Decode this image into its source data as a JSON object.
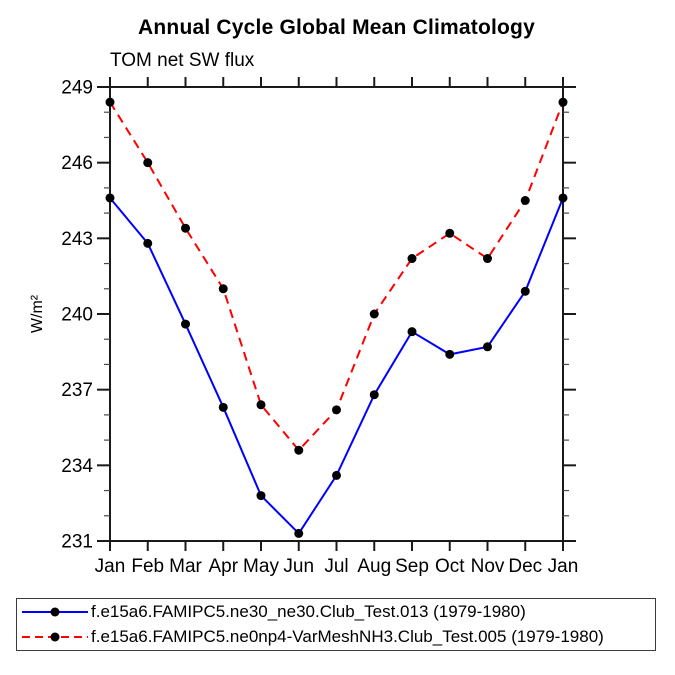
{
  "title": "Annual Cycle Global Mean Climatology",
  "subtitle": "TOM net SW flux",
  "chart_data": {
    "type": "line",
    "title": "Annual Cycle Global Mean Climatology",
    "subtitle": "TOM net SW flux",
    "ylabel": "W/m²",
    "x_categories": [
      "Jan",
      "Feb",
      "Mar",
      "Apr",
      "May",
      "Jun",
      "Jul",
      "Aug",
      "Sep",
      "Oct",
      "Nov",
      "Dec",
      "Jan"
    ],
    "ylim": [
      231,
      249
    ],
    "ytick_major_step": 3,
    "ytick_minor_step": 1,
    "ytick_labels": [
      "231",
      "234",
      "237",
      "240",
      "243",
      "246",
      "249"
    ],
    "grid": "off",
    "legend_position": "bottom-left-box",
    "axis_color": "#1a1a1a",
    "marker_color": "#000000",
    "series": [
      {
        "name": "f.e15a6.FAMIPC5.ne30_ne30.Club_Test.013 (1979-1980)",
        "color": "#0000ff",
        "style": "solid",
        "marker": "filled-circle",
        "values": [
          244.6,
          242.8,
          239.6,
          236.3,
          232.8,
          231.3,
          233.6,
          236.8,
          239.3,
          238.4,
          238.7,
          240.9,
          244.6
        ]
      },
      {
        "name": "f.e15a6.FAMIPC5.ne0np4-VarMeshNH3.Club_Test.005 (1979-1980)",
        "color": "#ff0000",
        "style": "dashed",
        "marker": "filled-circle",
        "values": [
          248.4,
          246.0,
          243.4,
          241.0,
          236.4,
          234.6,
          236.2,
          240.0,
          242.2,
          243.2,
          242.2,
          244.5,
          248.4
        ]
      }
    ]
  }
}
